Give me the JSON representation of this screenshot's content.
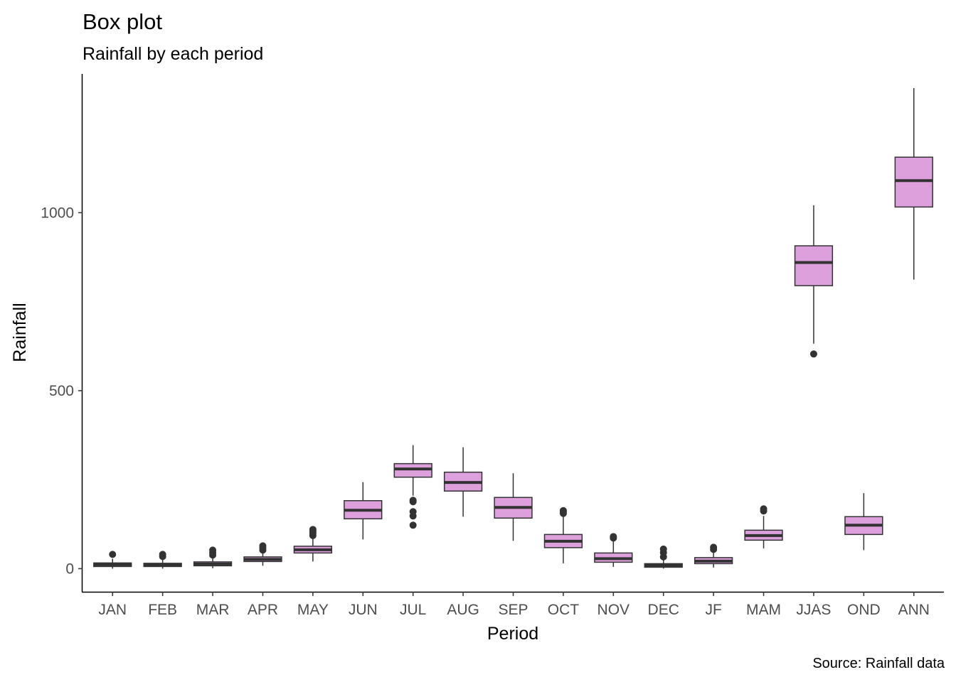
{
  "chart_data": {
    "type": "box",
    "title": "Box plot",
    "subtitle": "Rainfall by each period",
    "xlabel": "Period",
    "ylabel": "Rainfall",
    "caption": "Source: Rainfall data",
    "ylim": [
      -65,
      1390
    ],
    "y_ticks": [
      0,
      500,
      1000
    ],
    "grid": false,
    "colors": {
      "box_fill": "#DDA0DD",
      "box_line": "#333333",
      "axis": "#000000",
      "tick_text": "#4D4D4D"
    },
    "categories": [
      "JAN",
      "FEB",
      "MAR",
      "APR",
      "MAY",
      "JUN",
      "JUL",
      "AUG",
      "SEP",
      "OCT",
      "NOV",
      "DEC",
      "JF",
      "MAM",
      "JJAS",
      "OND",
      "ANN"
    ],
    "boxes": [
      {
        "label": "JAN",
        "whisker_low": 0,
        "q1": 6,
        "median": 11,
        "q3": 16,
        "whisker_high": 28,
        "outliers": [
          40
        ]
      },
      {
        "label": "FEB",
        "whisker_low": 0,
        "q1": 6,
        "median": 10,
        "q3": 15,
        "whisker_high": 26,
        "outliers": [
          34,
          40
        ]
      },
      {
        "label": "MAR",
        "whisker_low": 1,
        "q1": 8,
        "median": 13,
        "q3": 19,
        "whisker_high": 32,
        "outliers": [
          38,
          45,
          52
        ]
      },
      {
        "label": "APR",
        "whisker_low": 8,
        "q1": 20,
        "median": 26,
        "q3": 33,
        "whisker_high": 48,
        "outliers": [
          52,
          58,
          64
        ]
      },
      {
        "label": "MAY",
        "whisker_low": 20,
        "q1": 44,
        "median": 53,
        "q3": 63,
        "whisker_high": 88,
        "outliers": [
          93,
          100,
          105,
          110
        ]
      },
      {
        "label": "JUN",
        "whisker_low": 82,
        "q1": 140,
        "median": 164,
        "q3": 191,
        "whisker_high": 243,
        "outliers": []
      },
      {
        "label": "JUL",
        "whisker_low": 205,
        "q1": 257,
        "median": 280,
        "q3": 295,
        "whisker_high": 347,
        "outliers": [
          122,
          148,
          160,
          188,
          192
        ]
      },
      {
        "label": "AUG",
        "whisker_low": 146,
        "q1": 218,
        "median": 242,
        "q3": 271,
        "whisker_high": 341,
        "outliers": []
      },
      {
        "label": "SEP",
        "whisker_low": 78,
        "q1": 142,
        "median": 172,
        "q3": 200,
        "whisker_high": 268,
        "outliers": []
      },
      {
        "label": "OCT",
        "whisker_low": 15,
        "q1": 59,
        "median": 77,
        "q3": 96,
        "whisker_high": 150,
        "outliers": [
          155,
          160,
          163
        ]
      },
      {
        "label": "NOV",
        "whisker_low": 5,
        "q1": 18,
        "median": 28,
        "q3": 44,
        "whisker_high": 80,
        "outliers": [
          86,
          90
        ]
      },
      {
        "label": "DEC",
        "whisker_low": 0,
        "q1": 4,
        "median": 9,
        "q3": 14,
        "whisker_high": 26,
        "outliers": [
          33,
          45,
          55
        ]
      },
      {
        "label": "JF",
        "whisker_low": 3,
        "q1": 14,
        "median": 21,
        "q3": 31,
        "whisker_high": 48,
        "outliers": [
          54,
          60
        ]
      },
      {
        "label": "MAM",
        "whisker_low": 57,
        "q1": 80,
        "median": 93,
        "q3": 108,
        "whisker_high": 148,
        "outliers": [
          162,
          168
        ]
      },
      {
        "label": "JJAS",
        "whisker_low": 632,
        "q1": 795,
        "median": 860,
        "q3": 907,
        "whisker_high": 1021,
        "outliers": [
          603
        ]
      },
      {
        "label": "OND",
        "whisker_low": 52,
        "q1": 96,
        "median": 122,
        "q3": 146,
        "whisker_high": 212,
        "outliers": []
      },
      {
        "label": "ANN",
        "whisker_low": 812,
        "q1": 1016,
        "median": 1090,
        "q3": 1156,
        "whisker_high": 1350,
        "outliers": []
      }
    ]
  }
}
